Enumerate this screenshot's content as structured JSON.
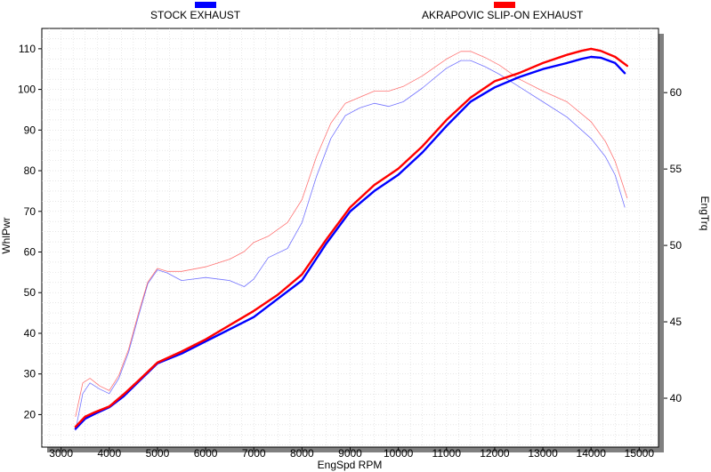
{
  "chart_data": {
    "type": "line",
    "xlabel": "EngSpd  RPM",
    "ylabel_left": "WhlPwr",
    "ylabel_right": "EngTrq",
    "xlim": [
      2600,
      15400
    ],
    "ylim_left": [
      12,
      115
    ],
    "ylim_right": [
      36.8,
      64.2
    ],
    "x_ticks": [
      3000,
      4000,
      5000,
      6000,
      7000,
      8000,
      9000,
      10000,
      11000,
      12000,
      13000,
      14000,
      15000
    ],
    "y_left_ticks": [
      20,
      30,
      40,
      50,
      60,
      70,
      80,
      90,
      100,
      110
    ],
    "y_right_ticks": [
      40,
      45,
      50,
      55,
      60
    ],
    "grid": true,
    "legend_position": "top",
    "series": [
      {
        "name": "STOCK EXHAUST",
        "color": "#0000ff",
        "axis": "left",
        "measure": "power",
        "x": [
          3300,
          3500,
          3700,
          4000,
          4300,
          4600,
          5000,
          5500,
          6000,
          6500,
          7000,
          7500,
          8000,
          8500,
          9000,
          9500,
          10000,
          10500,
          11000,
          11500,
          12000,
          12500,
          13000,
          13500,
          13800,
          14000,
          14200,
          14500,
          14700
        ],
        "y": [
          16.5,
          19,
          20.2,
          21.8,
          24.5,
          28,
          32.6,
          35,
          38,
          41,
          44,
          48.5,
          53,
          62,
          70,
          75,
          79,
          84.5,
          91,
          97,
          100.5,
          103,
          105,
          106.5,
          107.5,
          108,
          107.8,
          106.5,
          104
        ]
      },
      {
        "name": "AKRAPOVIC SLIP-ON EXHAUST",
        "color": "#ff0000",
        "axis": "left",
        "measure": "power",
        "x": [
          3300,
          3500,
          3700,
          4000,
          4300,
          4600,
          5000,
          5500,
          6000,
          6500,
          7000,
          7500,
          8000,
          8500,
          9000,
          9500,
          10000,
          10500,
          11000,
          11500,
          12000,
          12500,
          13000,
          13500,
          13800,
          14000,
          14200,
          14500,
          14750
        ],
        "y": [
          17,
          19.5,
          20.6,
          22,
          25,
          28.3,
          32.8,
          35.5,
          38.5,
          42,
          45.5,
          49.5,
          54.5,
          63,
          71,
          76.5,
          80.5,
          86,
          92.5,
          98,
          102,
          104,
          106.5,
          108.5,
          109.5,
          110,
          109.5,
          108,
          105.8
        ]
      },
      {
        "name": "STOCK EXHAUST",
        "color": "#0000ff",
        "axis": "right",
        "measure": "torque",
        "x": [
          3300,
          3450,
          3600,
          3800,
          4000,
          4200,
          4400,
          4600,
          4800,
          5000,
          5200,
          5500,
          6000,
          6500,
          6800,
          7000,
          7300,
          7700,
          8000,
          8300,
          8600,
          8900,
          9200,
          9500,
          9800,
          10100,
          10500,
          11000,
          11300,
          11500,
          11800,
          12100,
          12500,
          13000,
          13500,
          14000,
          14300,
          14500,
          14700
        ],
        "y": [
          37.9,
          40.3,
          41,
          40.6,
          40.3,
          41.3,
          43,
          45.3,
          47.5,
          48.4,
          48.2,
          47.7,
          47.9,
          47.7,
          47.3,
          47.8,
          49.2,
          49.8,
          51.5,
          54.5,
          57,
          58.5,
          59,
          59.3,
          59.1,
          59.4,
          60.3,
          61.6,
          62.1,
          62.1,
          61.7,
          61.2,
          60.4,
          59.4,
          58.4,
          57,
          55.8,
          54.6,
          52.5
        ]
      },
      {
        "name": "AKRAPOVIC SLIP-ON EXHAUST",
        "color": "#ff0000",
        "axis": "right",
        "measure": "torque",
        "x": [
          3300,
          3450,
          3600,
          3800,
          4000,
          4200,
          4400,
          4600,
          4800,
          5000,
          5200,
          5500,
          6000,
          6500,
          6800,
          7000,
          7300,
          7700,
          8000,
          8300,
          8600,
          8900,
          9200,
          9500,
          9800,
          10100,
          10500,
          11000,
          11300,
          11500,
          11800,
          12100,
          12500,
          13000,
          13500,
          14000,
          14300,
          14500,
          14750
        ],
        "y": [
          38.8,
          41,
          41.3,
          40.8,
          40.5,
          41.5,
          43.2,
          45.5,
          47.6,
          48.5,
          48.3,
          48.3,
          48.6,
          49.1,
          49.6,
          50.2,
          50.6,
          51.5,
          53,
          55.8,
          58,
          59.3,
          59.7,
          60.1,
          60.1,
          60.4,
          61.1,
          62.2,
          62.7,
          62.7,
          62.3,
          61.8,
          60.9,
          60.1,
          59.4,
          58.1,
          56.8,
          55.5,
          53.1
        ]
      }
    ]
  }
}
